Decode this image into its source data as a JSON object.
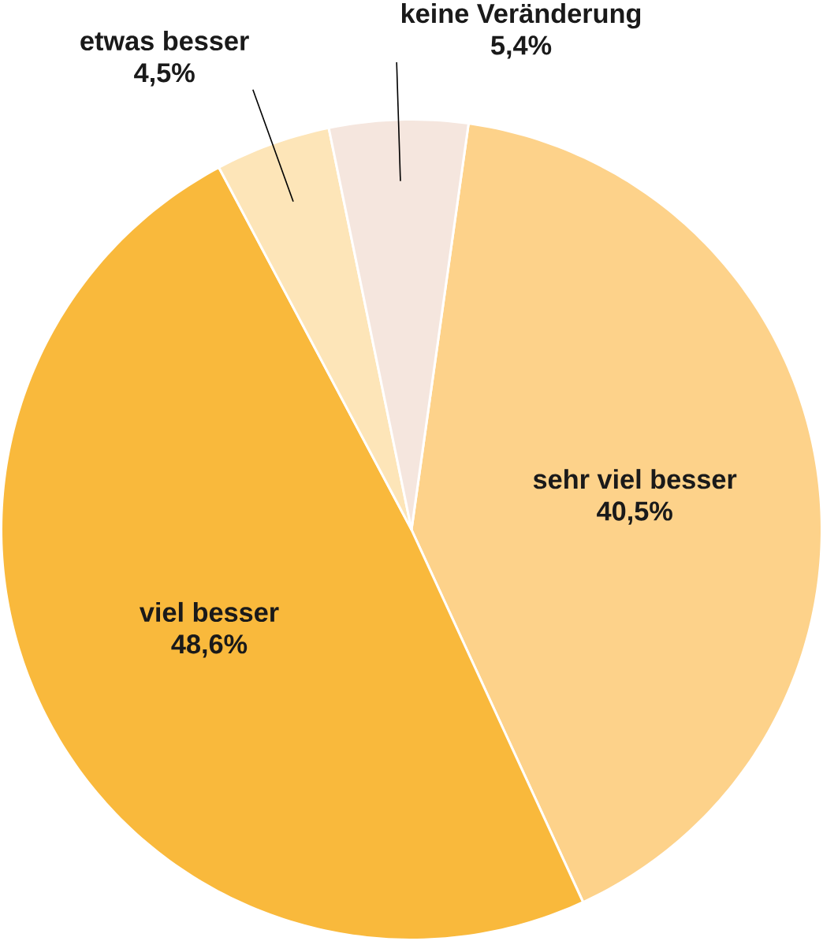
{
  "chart_data": {
    "type": "pie",
    "categories": [
      "sehr viel besser",
      "viel besser",
      "etwas besser",
      "keine Veränderung"
    ],
    "values": [
      40.5,
      48.6,
      4.5,
      5.4
    ],
    "value_labels": [
      "40,5%",
      "48,6%",
      "4,5%",
      "5,4%"
    ],
    "colors": [
      "#fdd28a",
      "#f9b93c",
      "#fde5b8",
      "#f5e6de"
    ]
  }
}
